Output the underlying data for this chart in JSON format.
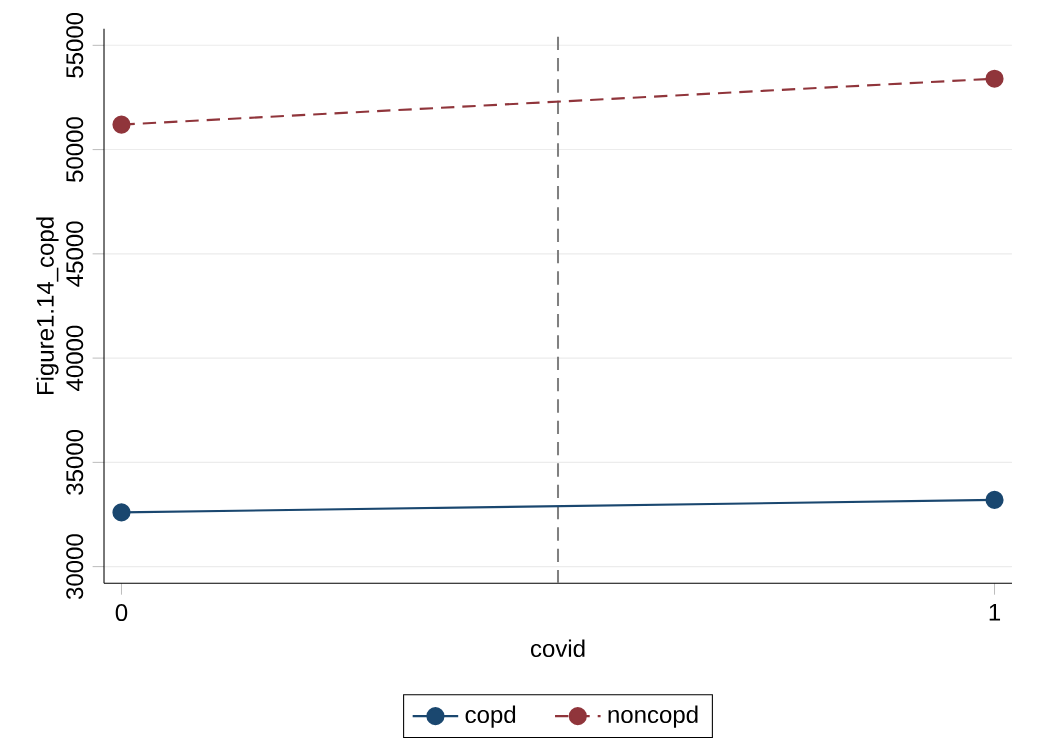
{
  "chart_data": {
    "type": "line",
    "xlabel": "covid",
    "ylabel": "Figure1.14_copd",
    "x": [
      0,
      1
    ],
    "xlim": [
      -0.02,
      1.02
    ],
    "xticks": [
      0,
      1
    ],
    "ylim": [
      29200,
      55800
    ],
    "yticks": [
      30000,
      35000,
      40000,
      45000,
      50000,
      55000
    ],
    "grid": "y",
    "legend": "bottom",
    "marker": "circle",
    "ref_lines": [
      {
        "axis": "x",
        "value": 0.5,
        "color": "#808080",
        "line_style": "dashed"
      }
    ],
    "series": [
      {
        "name": "copd",
        "color": "#1a476f",
        "line_style": "solid",
        "values": [
          32600,
          33200
        ]
      },
      {
        "name": "noncopd",
        "color": "#90353b",
        "line_style": "dashed",
        "values": [
          51200,
          53400
        ]
      }
    ]
  }
}
